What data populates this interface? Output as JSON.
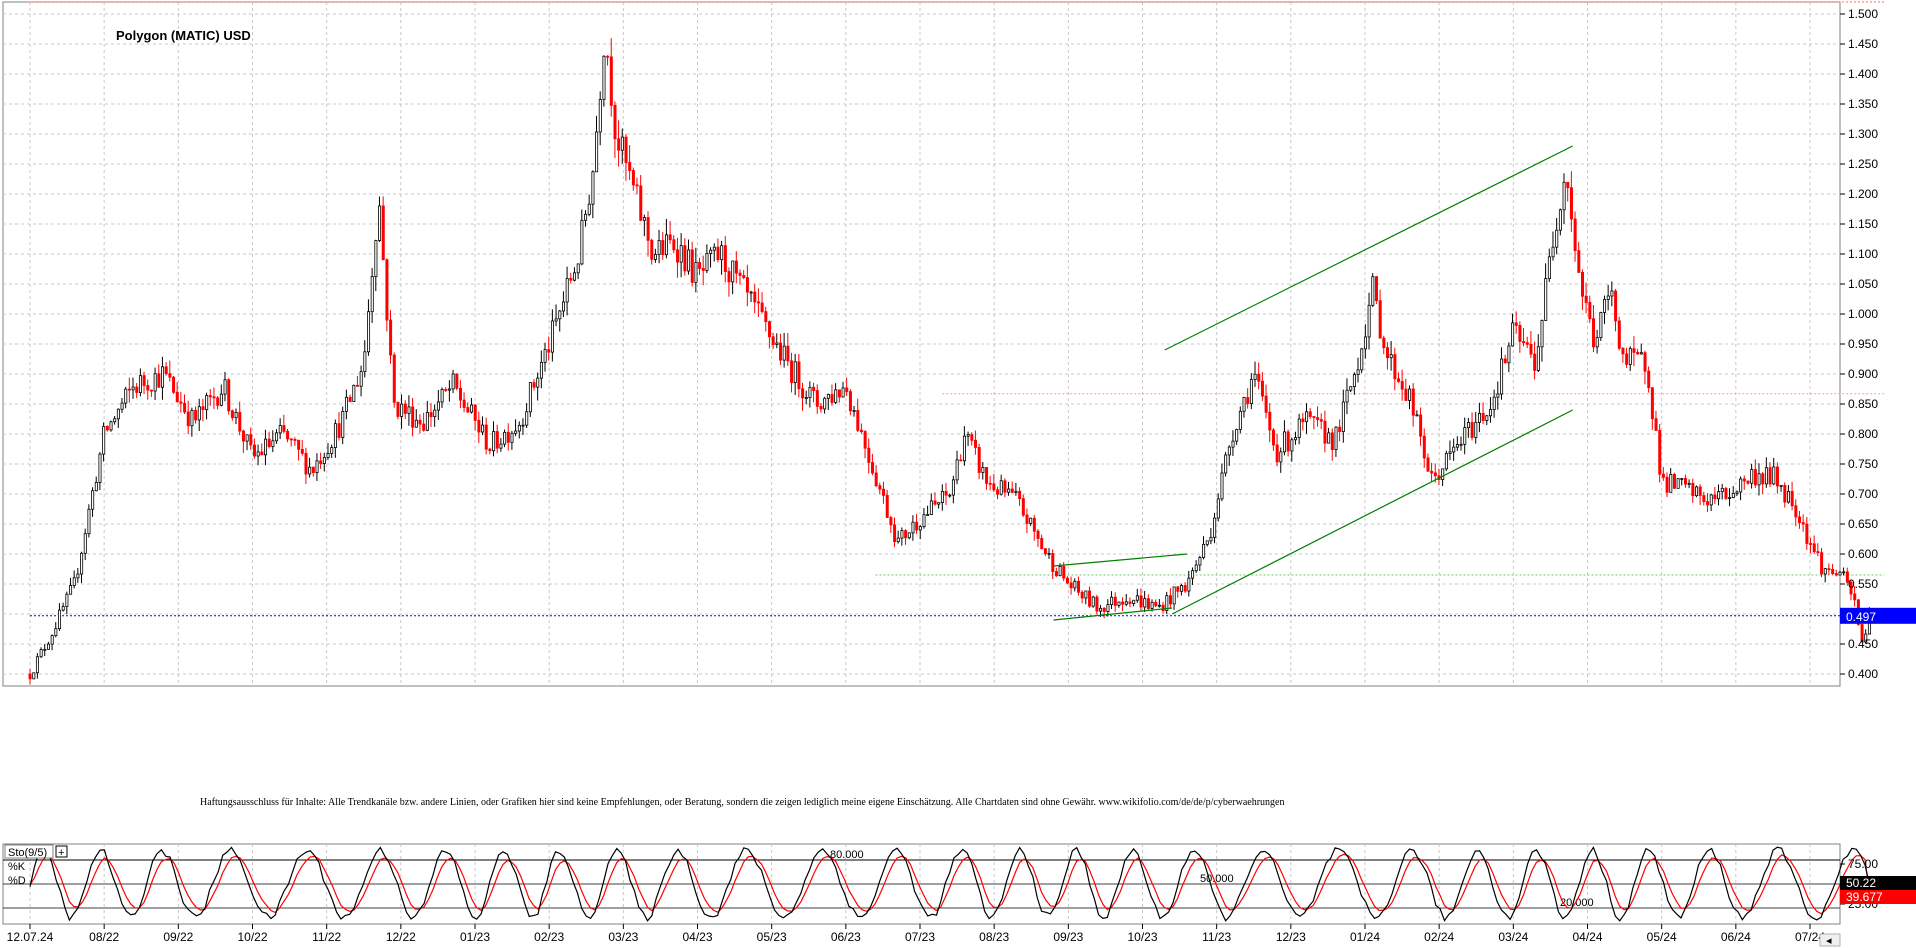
{
  "chart_data": [
    {
      "type": "candlestick",
      "title": "Polygon (MATIC) USD",
      "y_ticks": [
        "1.500",
        "1.450",
        "1.400",
        "1.350",
        "1.300",
        "1.250",
        "1.200",
        "1.150",
        "1.100",
        "1.050",
        "1.000",
        "0.950",
        "0.900",
        "0.850",
        "0.800",
        "0.750",
        "0.700",
        "0.650",
        "0.600",
        "0.550",
        "0.500",
        "0.450",
        "0.400"
      ],
      "ylim": [
        0.38,
        1.52
      ],
      "x_ticks": [
        "12.07.24",
        "08/22",
        "09/22",
        "10/22",
        "11/22",
        "12/22",
        "01/23",
        "02/23",
        "03/23",
        "04/23",
        "05/23",
        "06/23",
        "07/23",
        "08/23",
        "09/23",
        "10/23",
        "11/23",
        "12/23",
        "01/24",
        "02/24",
        "03/24",
        "04/24",
        "05/24",
        "06/24",
        "07/24"
      ],
      "grid": true,
      "last_price": "0.497",
      "last_price_value": 0.497,
      "disclaimer": "Haftungsausschluss für Inhalte: Alle Trendkanäle bzw. andere Linien, oder Grafiken hier sind keine Empfehlungen, oder Beratung, sondern die zeigen lediglich meine eigene Einschätzung. Alle Chartdaten sind ohne Gewähr. www.wikifolio.com/de/de/p/cyberwaehrungen",
      "price_path": [
        [
          0,
          0.4
        ],
        [
          0.3,
          0.47
        ],
        [
          0.6,
          0.55
        ],
        [
          1.0,
          0.8
        ],
        [
          1.4,
          0.88
        ],
        [
          1.8,
          0.9
        ],
        [
          2.2,
          0.82
        ],
        [
          2.6,
          0.88
        ],
        [
          3.0,
          0.76
        ],
        [
          3.4,
          0.8
        ],
        [
          3.8,
          0.74
        ],
        [
          4.2,
          0.82
        ],
        [
          4.5,
          0.92
        ],
        [
          4.7,
          1.2
        ],
        [
          4.9,
          0.85
        ],
        [
          5.3,
          0.82
        ],
        [
          5.7,
          0.88
        ],
        [
          6.2,
          0.78
        ],
        [
          6.6,
          0.82
        ],
        [
          7.0,
          0.95
        ],
        [
          7.4,
          1.1
        ],
        [
          7.6,
          1.25
        ],
        [
          7.75,
          1.48
        ],
        [
          7.9,
          1.3
        ],
        [
          8.1,
          1.22
        ],
        [
          8.4,
          1.1
        ],
        [
          8.7,
          1.12
        ],
        [
          9.0,
          1.06
        ],
        [
          9.3,
          1.1
        ],
        [
          9.6,
          1.04
        ],
        [
          9.9,
          0.98
        ],
        [
          10.2,
          0.92
        ],
        [
          10.6,
          0.85
        ],
        [
          11.0,
          0.88
        ],
        [
          11.4,
          0.73
        ],
        [
          11.7,
          0.62
        ],
        [
          12.0,
          0.66
        ],
        [
          12.4,
          0.7
        ],
        [
          12.6,
          0.8
        ],
        [
          12.9,
          0.72
        ],
        [
          13.3,
          0.69
        ],
        [
          13.7,
          0.6
        ],
        [
          14.0,
          0.55
        ],
        [
          14.4,
          0.51
        ],
        [
          14.8,
          0.53
        ],
        [
          15.2,
          0.51
        ],
        [
          15.6,
          0.55
        ],
        [
          15.9,
          0.63
        ],
        [
          16.2,
          0.8
        ],
        [
          16.5,
          0.9
        ],
        [
          16.8,
          0.77
        ],
        [
          17.2,
          0.82
        ],
        [
          17.6,
          0.79
        ],
        [
          17.9,
          0.92
        ],
        [
          18.1,
          1.04
        ],
        [
          18.3,
          0.93
        ],
        [
          18.6,
          0.86
        ],
        [
          18.9,
          0.72
        ],
        [
          19.3,
          0.79
        ],
        [
          19.7,
          0.85
        ],
        [
          20.0,
          0.97
        ],
        [
          20.3,
          0.92
        ],
        [
          20.5,
          1.1
        ],
        [
          20.7,
          1.25
        ],
        [
          20.9,
          1.05
        ],
        [
          21.1,
          0.95
        ],
        [
          21.3,
          1.04
        ],
        [
          21.5,
          0.92
        ],
        [
          21.8,
          0.92
        ],
        [
          22.0,
          0.72
        ],
        [
          22.3,
          0.71
        ],
        [
          22.6,
          0.69
        ],
        [
          22.9,
          0.7
        ],
        [
          23.2,
          0.73
        ],
        [
          23.5,
          0.73
        ],
        [
          23.8,
          0.68
        ],
        [
          24.0,
          0.62
        ],
        [
          24.2,
          0.57
        ],
        [
          24.4,
          0.57
        ],
        [
          24.6,
          0.52
        ],
        [
          24.7,
          0.45
        ],
        [
          24.8,
          0.5
        ]
      ],
      "trend_lines": [
        {
          "from": [
            15.3,
            0.94
          ],
          "to": [
            20.8,
            1.28
          ]
        },
        {
          "from": [
            15.4,
            0.5
          ],
          "to": [
            20.8,
            0.84
          ]
        },
        {
          "from": [
            13.8,
            0.58
          ],
          "to": [
            15.6,
            0.6
          ]
        },
        {
          "from": [
            13.8,
            0.49
          ],
          "to": [
            15.4,
            0.51
          ]
        }
      ],
      "levels": [
        {
          "value": 0.867,
          "from": 12.3,
          "to": 25.0,
          "color": "#ff9999"
        },
        {
          "value": 0.565,
          "from": 11.4,
          "to": 25.0,
          "color": "#66cc66"
        },
        {
          "value": 0.497,
          "from": 0.0,
          "to": 25.0,
          "color": "#0000ff"
        },
        {
          "value": 1.52,
          "from": 0.0,
          "to": 25.0,
          "color": "#ff6666"
        }
      ]
    },
    {
      "type": "line",
      "title": "Sto(9/5)",
      "series": [
        {
          "name": "%K",
          "color": "#000000"
        },
        {
          "name": "%D",
          "color": "#ff0000"
        }
      ],
      "ylim": [
        0,
        100
      ],
      "y_ticks": [
        "75.00",
        "25.00"
      ],
      "levels": [
        {
          "value": 80,
          "label": "80.000"
        },
        {
          "value": 50,
          "label": "50.000"
        },
        {
          "value": 20,
          "label": "20.000"
        }
      ],
      "last_values": {
        "k": "50.22",
        "d": "39.677"
      },
      "last_values_num": {
        "k": 50.22,
        "d": 39.677
      }
    }
  ],
  "colors": {
    "bull": "#000000",
    "bear": "#ff0000",
    "grid": "#c8c8c8",
    "trend": "#008000",
    "last_price_bg": "#0000ff",
    "k_bg": "#000000",
    "d_bg": "#ff0000"
  }
}
